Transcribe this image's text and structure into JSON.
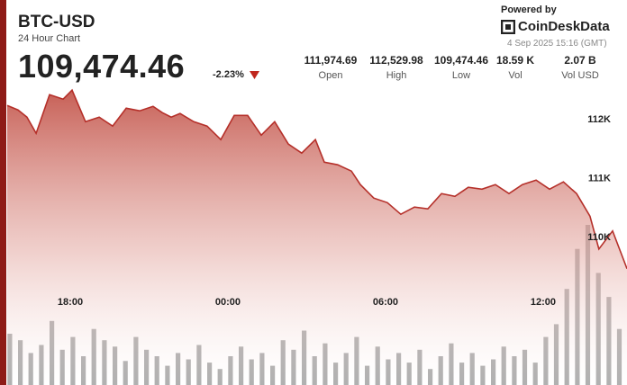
{
  "chart_data": {
    "type": "area",
    "title": "BTC-USD",
    "subtitle": "24 Hour Chart",
    "price": "109,474.46",
    "change": "-2.23%",
    "stats": [
      {
        "value": "111,974.69",
        "label": "Open"
      },
      {
        "value": "112,529.98",
        "label": "High"
      },
      {
        "value": "109,474.46",
        "label": "Low"
      },
      {
        "value": "18.59 K",
        "label": "Vol"
      },
      {
        "value": "2.07 B",
        "label": "Vol USD"
      }
    ],
    "powered_by": "Powered by",
    "brand": "CoinDeskData",
    "timestamp": "4 Sep 2025 15:16 (GMT)",
    "xlim": [
      15.6,
      39.19
    ],
    "xticks": [
      {
        "value": 18,
        "label": "18:00"
      },
      {
        "value": 24,
        "label": "00:00"
      },
      {
        "value": 30,
        "label": "06:00"
      },
      {
        "value": 36,
        "label": "12:00"
      }
    ],
    "ylim": [
      107500,
      112660
    ],
    "yticks": [
      {
        "value": 110000,
        "label": "110K"
      },
      {
        "value": 111000,
        "label": "111K"
      },
      {
        "value": 112000,
        "label": "112K"
      }
    ],
    "y2lim": [
      0,
      100
    ],
    "grid": false,
    "series": [
      {
        "color": "#b5302a",
        "x": [
          15.6,
          16.01,
          16.35,
          16.7,
          17.21,
          17.73,
          18.07,
          18.58,
          19.1,
          19.61,
          20.13,
          20.64,
          21.15,
          21.5,
          21.84,
          22.18,
          22.7,
          23.21,
          23.73,
          24.24,
          24.75,
          25.27,
          25.78,
          26.3,
          26.81,
          27.33,
          27.67,
          28.18,
          28.7,
          29.04,
          29.55,
          30.07,
          30.58,
          31.1,
          31.61,
          32.13,
          32.64,
          33.15,
          33.67,
          34.18,
          34.7,
          35.21,
          35.73,
          36.24,
          36.77,
          37.27,
          37.78,
          38.12,
          38.64,
          39.19
        ],
        "values": [
          112244,
          112168,
          112046,
          111771,
          112427,
          112351,
          112504,
          111969,
          112046,
          111893,
          112198,
          112153,
          112229,
          112122,
          112046,
          112107,
          111969,
          111893,
          111664,
          112076,
          112076,
          111740,
          111969,
          111588,
          111435,
          111664,
          111282,
          111237,
          111130,
          110901,
          110672,
          110595,
          110397,
          110519,
          110489,
          110748,
          110702,
          110855,
          110824,
          110901,
          110748,
          110901,
          110977,
          110824,
          110947,
          110748,
          110366,
          109809,
          110115,
          109474
        ]
      },
      {
        "type": "bar",
        "axis": "y2",
        "color": "#8c8c8c",
        "x": [
          15.7,
          16.1,
          16.5,
          16.9,
          17.3,
          17.7,
          18.1,
          18.5,
          18.9,
          19.3,
          19.7,
          20.1,
          20.5,
          20.9,
          21.3,
          21.7,
          22.1,
          22.5,
          22.9,
          23.3,
          23.7,
          24.1,
          24.5,
          24.9,
          25.3,
          25.7,
          26.1,
          26.5,
          26.9,
          27.3,
          27.7,
          28.1,
          28.5,
          28.9,
          29.3,
          29.7,
          30.1,
          30.5,
          30.9,
          31.3,
          31.7,
          32.1,
          32.5,
          32.9,
          33.3,
          33.7,
          34.1,
          34.5,
          34.9,
          35.3,
          35.7,
          36.1,
          36.5,
          36.9,
          37.3,
          37.7,
          38.1,
          38.5,
          38.9
        ],
        "values": [
          32,
          28,
          20,
          25,
          40,
          22,
          30,
          18,
          35,
          28,
          24,
          15,
          30,
          22,
          18,
          12,
          20,
          16,
          25,
          14,
          10,
          18,
          24,
          16,
          20,
          12,
          28,
          22,
          34,
          18,
          26,
          14,
          20,
          30,
          12,
          24,
          16,
          20,
          14,
          22,
          10,
          18,
          26,
          14,
          20,
          12,
          16,
          24,
          18,
          22,
          14,
          30,
          38,
          60,
          85,
          100,
          70,
          55,
          35
        ]
      }
    ]
  }
}
